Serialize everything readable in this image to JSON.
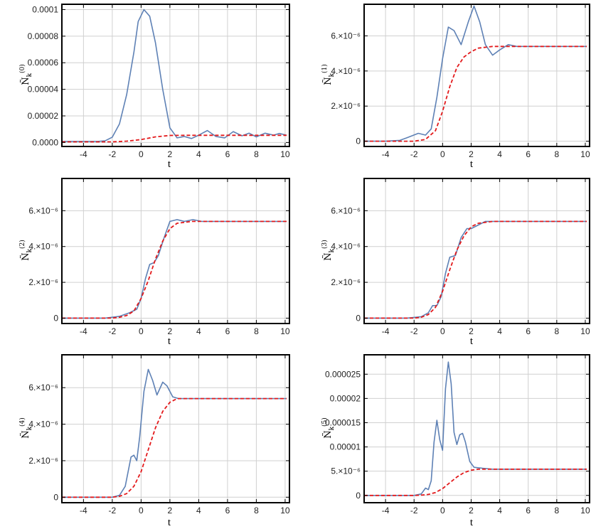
{
  "chart_data": [
    {
      "type": "line",
      "panel": "N0",
      "ylabel": "Ñ_k^(0)",
      "ylabel_base": "Ñ",
      "ylabel_sub": "k",
      "ylabel_sup": "(0)",
      "xlabel": "t",
      "xlim": [
        -5.5,
        10.3
      ],
      "ylim": [
        -3e-06,
        0.000104
      ],
      "xticks": [
        -4,
        -2,
        0,
        2,
        4,
        6,
        8,
        10
      ],
      "xtick_labels": [
        "-4",
        "-2",
        "0",
        "2",
        "4",
        "6",
        "8",
        "10"
      ],
      "yticks": [
        0,
        2e-05,
        4e-05,
        6e-05,
        8e-05,
        0.0001
      ],
      "ytick_labels": [
        "0.0000",
        "0.00002",
        "0.00004",
        "0.00006",
        "0.00008",
        "0.0001"
      ],
      "grid": true,
      "series": [
        {
          "style": "solid",
          "color": "#5e81b5",
          "points": [
            [
              -5.5,
              8e-07
            ],
            [
              -4,
              8e-07
            ],
            [
              -3,
              8e-07
            ],
            [
              -2.5,
              1.2e-06
            ],
            [
              -2,
              4e-06
            ],
            [
              -1.5,
              1.4e-05
            ],
            [
              -1,
              3.6e-05
            ],
            [
              -0.5,
              6.8e-05
            ],
            [
              -0.2,
              9.1e-05
            ],
            [
              0.2,
              0.0001
            ],
            [
              0.6,
              9.5e-05
            ],
            [
              1,
              7.5e-05
            ],
            [
              1.5,
              4e-05
            ],
            [
              2,
              1.1e-05
            ],
            [
              2.5,
              3.5e-06
            ],
            [
              3,
              4.5e-06
            ],
            [
              3.5,
              3e-06
            ],
            [
              4,
              5.5e-06
            ],
            [
              4.6,
              9e-06
            ],
            [
              5.2,
              4.5e-06
            ],
            [
              5.8,
              3.5e-06
            ],
            [
              6.4,
              8.2e-06
            ],
            [
              7,
              5e-06
            ],
            [
              7.5,
              7e-06
            ],
            [
              8,
              4.2e-06
            ],
            [
              8.6,
              7e-06
            ],
            [
              9.2,
              5.5e-06
            ],
            [
              9.6,
              6.8e-06
            ],
            [
              10.1,
              5.5e-06
            ]
          ]
        },
        {
          "style": "dashed",
          "color": "#e31a1c",
          "points": [
            [
              -5.5,
              5e-07
            ],
            [
              -3,
              5e-07
            ],
            [
              -2,
              5e-07
            ],
            [
              -1,
              1e-06
            ],
            [
              0,
              2.2e-06
            ],
            [
              1,
              4.2e-06
            ],
            [
              2,
              5.3e-06
            ],
            [
              3,
              5.4e-06
            ],
            [
              4,
              5.4e-06
            ],
            [
              10.1,
              5.4e-06
            ]
          ]
        }
      ]
    },
    {
      "type": "line",
      "panel": "N1",
      "ylabel": "Ñ_k^(1)",
      "ylabel_base": "Ñ",
      "ylabel_sub": "k",
      "ylabel_sup": "(1)",
      "xlabel": "t",
      "xlim": [
        -5.5,
        10.3
      ],
      "ylim": [
        -3e-07,
        7.8e-06
      ],
      "xticks": [
        -4,
        -2,
        0,
        2,
        4,
        6,
        8,
        10
      ],
      "xtick_labels": [
        "-4",
        "-2",
        "0",
        "2",
        "4",
        "6",
        "8",
        "10"
      ],
      "yticks": [
        0,
        2e-06,
        4e-06,
        6e-06
      ],
      "ytick_labels": [
        "0",
        "2.×10⁻⁶",
        "4.×10⁻⁶",
        "6.×10⁻⁶"
      ],
      "grid": true,
      "series": [
        {
          "style": "solid",
          "color": "#5e81b5",
          "points": [
            [
              -5.5,
              0
            ],
            [
              -4,
              0
            ],
            [
              -3,
              5e-08
            ],
            [
              -2.5,
              2e-07
            ],
            [
              -1.7,
              4.5e-07
            ],
            [
              -1.2,
              3.5e-07
            ],
            [
              -0.8,
              7e-07
            ],
            [
              -0.4,
              2.5e-06
            ],
            [
              0,
              4.7e-06
            ],
            [
              0.4,
              6.5e-06
            ],
            [
              0.8,
              6.3e-06
            ],
            [
              1.3,
              5.5e-06
            ],
            [
              1.8,
              6.8e-06
            ],
            [
              2.2,
              7.7e-06
            ],
            [
              2.6,
              6.8e-06
            ],
            [
              3,
              5.5e-06
            ],
            [
              3.5,
              4.9e-06
            ],
            [
              4,
              5.2e-06
            ],
            [
              4.6,
              5.5e-06
            ],
            [
              5.2,
              5.4e-06
            ],
            [
              10.1,
              5.4e-06
            ]
          ]
        },
        {
          "style": "dashed",
          "color": "#e31a1c",
          "points": [
            [
              -5.5,
              0
            ],
            [
              -2,
              0
            ],
            [
              -1.2,
              1e-07
            ],
            [
              -0.5,
              6e-07
            ],
            [
              0,
              1.7e-06
            ],
            [
              0.5,
              3.1e-06
            ],
            [
              1,
              4.2e-06
            ],
            [
              1.5,
              4.8e-06
            ],
            [
              2,
              5.1e-06
            ],
            [
              2.5,
              5.3e-06
            ],
            [
              3.5,
              5.4e-06
            ],
            [
              10.1,
              5.4e-06
            ]
          ]
        }
      ]
    },
    {
      "type": "line",
      "panel": "N2",
      "ylabel": "Ñ_k^(2)",
      "ylabel_base": "Ñ",
      "ylabel_sub": "k",
      "ylabel_sup": "(2)",
      "xlabel": "t",
      "xlim": [
        -5.5,
        10.3
      ],
      "ylim": [
        -3e-07,
        7.8e-06
      ],
      "xticks": [
        -4,
        -2,
        0,
        2,
        4,
        6,
        8,
        10
      ],
      "xtick_labels": [
        "-4",
        "-2",
        "0",
        "2",
        "4",
        "6",
        "8",
        "10"
      ],
      "yticks": [
        0,
        2e-06,
        4e-06,
        6e-06
      ],
      "ytick_labels": [
        "0",
        "2.×10⁻⁶",
        "4.×10⁻⁶",
        "6.×10⁻⁶"
      ],
      "grid": true,
      "series": [
        {
          "style": "solid",
          "color": "#5e81b5",
          "points": [
            [
              -5.5,
              0
            ],
            [
              -2.5,
              0
            ],
            [
              -1.5,
              1e-07
            ],
            [
              -0.8,
              3e-07
            ],
            [
              -0.3,
              5e-07
            ],
            [
              0,
              1.1e-06
            ],
            [
              0.3,
              2.2e-06
            ],
            [
              0.6,
              3e-06
            ],
            [
              0.9,
              3.1e-06
            ],
            [
              1.2,
              3.5e-06
            ],
            [
              1.6,
              4.5e-06
            ],
            [
              2,
              5.4e-06
            ],
            [
              2.5,
              5.5e-06
            ],
            [
              3,
              5.4e-06
            ],
            [
              3.6,
              5.5e-06
            ],
            [
              4.2,
              5.4e-06
            ],
            [
              10.1,
              5.4e-06
            ]
          ]
        },
        {
          "style": "dashed",
          "color": "#e31a1c",
          "points": [
            [
              -5.5,
              0
            ],
            [
              -2,
              0
            ],
            [
              -1.5,
              5e-08
            ],
            [
              -1,
              1.5e-07
            ],
            [
              -0.5,
              4e-07
            ],
            [
              0,
              1.1e-06
            ],
            [
              0.5,
              2.1e-06
            ],
            [
              1,
              3.3e-06
            ],
            [
              1.5,
              4.3e-06
            ],
            [
              2,
              5e-06
            ],
            [
              2.5,
              5.3e-06
            ],
            [
              3.5,
              5.4e-06
            ],
            [
              10.1,
              5.4e-06
            ]
          ]
        }
      ]
    },
    {
      "type": "line",
      "panel": "N3",
      "ylabel": "Ñ_k^(3)",
      "ylabel_base": "Ñ",
      "ylabel_sub": "k",
      "ylabel_sup": "(3)",
      "xlabel": "t",
      "xlim": [
        -5.5,
        10.3
      ],
      "ylim": [
        -3e-07,
        7.8e-06
      ],
      "xticks": [
        -4,
        -2,
        0,
        2,
        4,
        6,
        8,
        10
      ],
      "xtick_labels": [
        "-4",
        "-2",
        "0",
        "2",
        "4",
        "6",
        "8",
        "10"
      ],
      "yticks": [
        0,
        2e-06,
        4e-06,
        6e-06
      ],
      "ytick_labels": [
        "0",
        "2.×10⁻⁶",
        "4.×10⁻⁶",
        "6.×10⁻⁶"
      ],
      "grid": true,
      "series": [
        {
          "style": "solid",
          "color": "#5e81b5",
          "points": [
            [
              -5.5,
              0
            ],
            [
              -2.5,
              0
            ],
            [
              -1.5,
              8e-08
            ],
            [
              -1,
              3e-07
            ],
            [
              -0.7,
              7e-07
            ],
            [
              -0.4,
              7e-07
            ],
            [
              -0.1,
              1.2e-06
            ],
            [
              0.2,
              2.5e-06
            ],
            [
              0.5,
              3.4e-06
            ],
            [
              0.9,
              3.5e-06
            ],
            [
              1.3,
              4.5e-06
            ],
            [
              1.7,
              5e-06
            ],
            [
              2,
              5e-06
            ],
            [
              2.5,
              5.2e-06
            ],
            [
              3,
              5.4e-06
            ],
            [
              3.5,
              5.4e-06
            ],
            [
              10.1,
              5.4e-06
            ]
          ]
        },
        {
          "style": "dashed",
          "color": "#e31a1c",
          "points": [
            [
              -5.5,
              0
            ],
            [
              -2,
              0
            ],
            [
              -1.5,
              5e-08
            ],
            [
              -1,
              2e-07
            ],
            [
              -0.5,
              6e-07
            ],
            [
              0,
              1.5e-06
            ],
            [
              0.5,
              2.7e-06
            ],
            [
              1,
              3.8e-06
            ],
            [
              1.5,
              4.6e-06
            ],
            [
              2,
              5.1e-06
            ],
            [
              2.5,
              5.3e-06
            ],
            [
              3.5,
              5.4e-06
            ],
            [
              10.1,
              5.4e-06
            ]
          ]
        }
      ]
    },
    {
      "type": "line",
      "panel": "N4",
      "ylabel": "Ñ_k^(4)",
      "ylabel_base": "Ñ",
      "ylabel_sub": "k",
      "ylabel_sup": "(4)",
      "xlabel": "t",
      "xlim": [
        -5.5,
        10.3
      ],
      "ylim": [
        -3e-07,
        7.8e-06
      ],
      "xticks": [
        -4,
        -2,
        0,
        2,
        4,
        6,
        8,
        10
      ],
      "xtick_labels": [
        "-4",
        "-2",
        "0",
        "2",
        "4",
        "6",
        "8",
        "10"
      ],
      "yticks": [
        0,
        2e-06,
        4e-06,
        6e-06
      ],
      "ytick_labels": [
        "0",
        "2.×10⁻⁶",
        "4.×10⁻⁶",
        "6.×10⁻⁶"
      ],
      "grid": true,
      "series": [
        {
          "style": "solid",
          "color": "#5e81b5",
          "points": [
            [
              -5.5,
              0
            ],
            [
              -2,
              0
            ],
            [
              -1.5,
              1e-07
            ],
            [
              -1.1,
              6e-07
            ],
            [
              -0.7,
              2.2e-06
            ],
            [
              -0.5,
              2.3e-06
            ],
            [
              -0.3,
              2e-06
            ],
            [
              -0.1,
              3.3e-06
            ],
            [
              0.2,
              5.8e-06
            ],
            [
              0.5,
              7e-06
            ],
            [
              0.8,
              6.4e-06
            ],
            [
              1.1,
              5.6e-06
            ],
            [
              1.5,
              6.3e-06
            ],
            [
              1.8,
              6.1e-06
            ],
            [
              2.2,
              5.5e-06
            ],
            [
              2.6,
              5.4e-06
            ],
            [
              3.2,
              5.4e-06
            ],
            [
              10.1,
              5.4e-06
            ]
          ]
        },
        {
          "style": "dashed",
          "color": "#e31a1c",
          "points": [
            [
              -5.5,
              0
            ],
            [
              -2,
              0
            ],
            [
              -1.5,
              5e-08
            ],
            [
              -1,
              2e-07
            ],
            [
              -0.5,
              6e-07
            ],
            [
              0,
              1.4e-06
            ],
            [
              0.5,
              2.6e-06
            ],
            [
              1,
              3.8e-06
            ],
            [
              1.5,
              4.7e-06
            ],
            [
              2,
              5.2e-06
            ],
            [
              2.5,
              5.4e-06
            ],
            [
              3.5,
              5.4e-06
            ],
            [
              10.1,
              5.4e-06
            ]
          ]
        }
      ]
    },
    {
      "type": "line",
      "panel": "N5",
      "ylabel": "Ñ_k^(5)",
      "ylabel_base": "Ñ",
      "ylabel_sub": "k",
      "ylabel_sup": "(5)",
      "xlabel": "t",
      "xlim": [
        -5.5,
        10.3
      ],
      "ylim": [
        -1.5e-06,
        2.9e-05
      ],
      "xticks": [
        -4,
        -2,
        0,
        2,
        4,
        6,
        8,
        10
      ],
      "xtick_labels": [
        "-4",
        "-2",
        "0",
        "2",
        "4",
        "6",
        "8",
        "10"
      ],
      "yticks": [
        0,
        5e-06,
        1e-05,
        1.5e-05,
        2e-05,
        2.5e-05
      ],
      "ytick_labels": [
        "0",
        "5.×10⁻⁶",
        "0.00001",
        "0.000015",
        "0.00002",
        "0.000025"
      ],
      "grid": true,
      "series": [
        {
          "style": "solid",
          "color": "#5e81b5",
          "points": [
            [
              -5.5,
              0
            ],
            [
              -2,
              0
            ],
            [
              -1.5,
              3e-07
            ],
            [
              -1.2,
              1.5e-06
            ],
            [
              -1,
              1.2e-06
            ],
            [
              -0.8,
              3e-06
            ],
            [
              -0.6,
              1.1e-05
            ],
            [
              -0.4,
              1.55e-05
            ],
            [
              -0.2,
              1.15e-05
            ],
            [
              0,
              9.3e-06
            ],
            [
              0.2,
              2.2e-05
            ],
            [
              0.4,
              2.75e-05
            ],
            [
              0.6,
              2.3e-05
            ],
            [
              0.8,
              1.3e-05
            ],
            [
              1,
              1.05e-05
            ],
            [
              1.2,
              1.25e-05
            ],
            [
              1.4,
              1.28e-05
            ],
            [
              1.6,
              1.1e-05
            ],
            [
              1.9,
              7e-06
            ],
            [
              2.2,
              5.8e-06
            ],
            [
              2.8,
              5.6e-06
            ],
            [
              3.5,
              5.4e-06
            ],
            [
              10.1,
              5.4e-06
            ]
          ]
        },
        {
          "style": "dashed",
          "color": "#e31a1c",
          "points": [
            [
              -5.5,
              0
            ],
            [
              -2,
              0
            ],
            [
              -1.5,
              5e-08
            ],
            [
              -1,
              2e-07
            ],
            [
              -0.5,
              6e-07
            ],
            [
              0,
              1.4e-06
            ],
            [
              0.5,
              2.6e-06
            ],
            [
              1,
              3.8e-06
            ],
            [
              1.5,
              4.7e-06
            ],
            [
              2,
              5.2e-06
            ],
            [
              2.5,
              5.4e-06
            ],
            [
              3.5,
              5.4e-06
            ],
            [
              10.1,
              5.4e-06
            ]
          ]
        }
      ]
    }
  ]
}
